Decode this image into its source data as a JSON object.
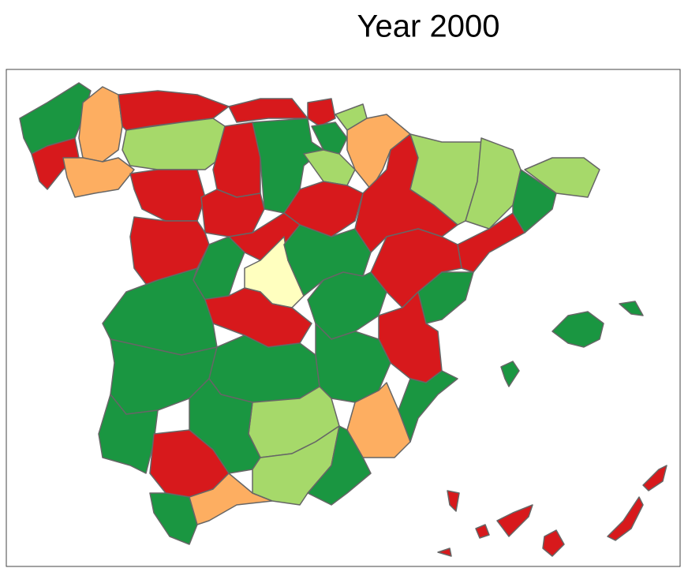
{
  "title": "Year 2000"
}
